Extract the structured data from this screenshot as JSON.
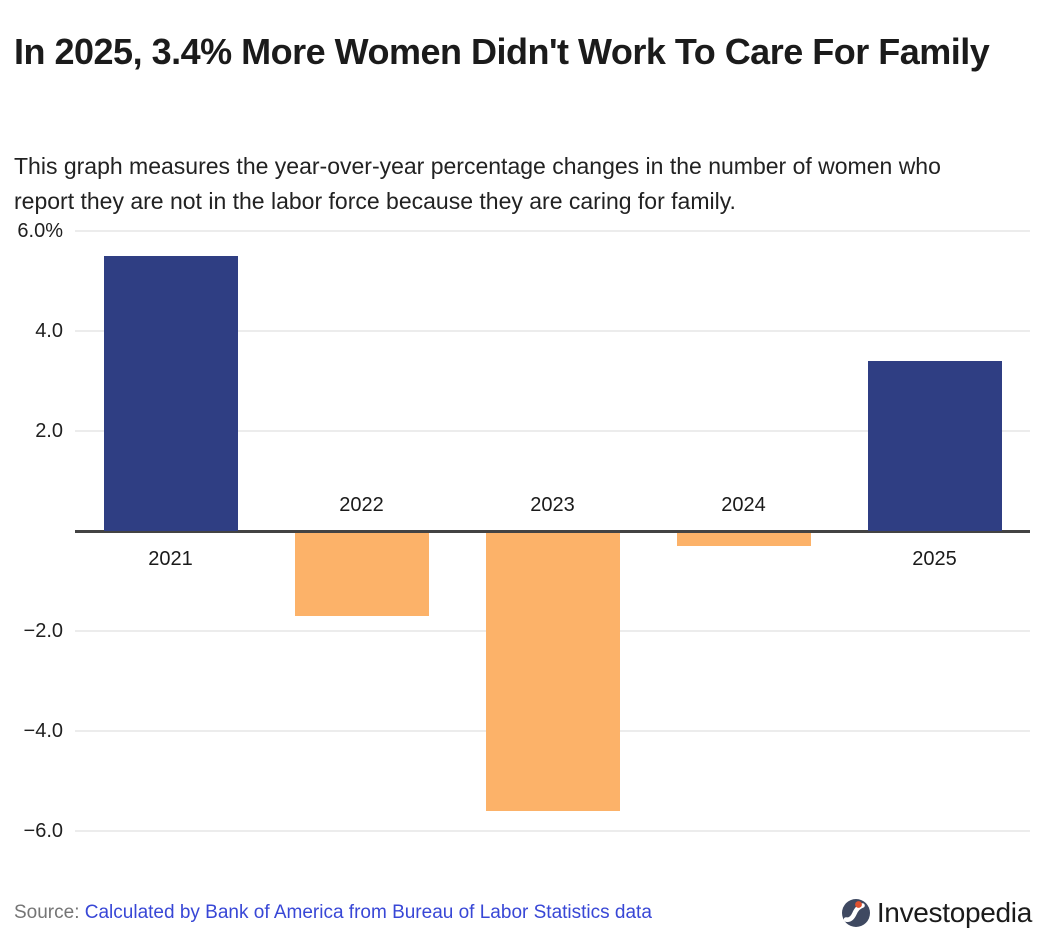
{
  "header": {
    "title": "In 2025, 3.4% More Women Didn't Work To Care For Family",
    "subtitle": "This graph measures the year-over-year percentage changes in the number of women who report they are not in the labor force because they are caring for family."
  },
  "chart_data": {
    "type": "bar",
    "categories": [
      "2021",
      "2022",
      "2023",
      "2024",
      "2025"
    ],
    "values": [
      5.5,
      -1.7,
      -5.6,
      -0.3,
      3.4
    ],
    "title": "In 2025, 3.4% More Women Didn't Work To Care For Family",
    "xlabel": "",
    "ylabel": "",
    "unit": "%",
    "ylim": [
      -6.8,
      6.2
    ],
    "yticks": [
      6.0,
      4.0,
      2.0,
      -2.0,
      -4.0,
      -6.0
    ],
    "ytick_labels": [
      "6.0%",
      "4.0",
      "2.0",
      "−2.0",
      "−4.0",
      "−6.0"
    ],
    "grid": true,
    "legend_position": "none",
    "colors": {
      "positive": "#2f3e83",
      "negative": "#fcb269",
      "gridline": "#ececec",
      "axis": "#434343"
    }
  },
  "footer": {
    "source_label": "Source:",
    "source_link": "Calculated by Bank of America from Bureau of Labor Statistics data",
    "link_color": "#3847d6",
    "brand": "Investopedia",
    "logo_colors": {
      "circle": "#3f4961",
      "dot": "#e0512f",
      "glyph": "#ffffff"
    }
  }
}
